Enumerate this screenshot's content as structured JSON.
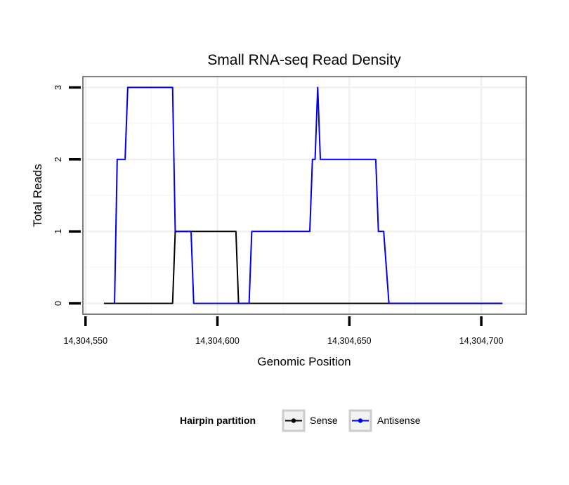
{
  "chart_data": {
    "type": "line",
    "title": "Small RNA-seq Read Density",
    "xlabel": "Genomic Position",
    "ylabel": "Total Reads",
    "xlim": [
      14304549,
      14304717
    ],
    "ylim": [
      -0.15,
      3.15
    ],
    "x_ticks": [
      14304550,
      14304600,
      14304650,
      14304700
    ],
    "x_tick_labels": [
      "14,304,550",
      "14,304,600",
      "14,304,650",
      "14,304,700"
    ],
    "y_ticks": [
      0,
      1,
      2,
      3
    ],
    "y_tick_labels": [
      "0",
      "1",
      "2",
      "3"
    ],
    "x_minor_gridlines": [
      14304575,
      14304625,
      14304675
    ],
    "y_minor_gridlines": [
      0.5,
      1.5,
      2.5
    ],
    "legend": {
      "title": "Hairpin partition",
      "position": "bottom",
      "entries": [
        "Sense",
        "Antisense"
      ]
    },
    "series": [
      {
        "name": "Sense",
        "color": "#000000",
        "points": [
          [
            14304557,
            0
          ],
          [
            14304583,
            0
          ],
          [
            14304584,
            1
          ],
          [
            14304607,
            1
          ],
          [
            14304608,
            0
          ],
          [
            14304708,
            0
          ]
        ]
      },
      {
        "name": "Antisense",
        "color": "#0000ee",
        "points": [
          [
            14304561,
            0
          ],
          [
            14304562,
            2
          ],
          [
            14304565,
            2
          ],
          [
            14304566,
            3
          ],
          [
            14304583,
            3
          ],
          [
            14304584,
            1
          ],
          [
            14304590,
            1
          ],
          [
            14304591,
            0
          ],
          [
            14304612,
            0
          ],
          [
            14304613,
            1
          ],
          [
            14304635,
            1
          ],
          [
            14304636,
            2
          ],
          [
            14304637,
            2
          ],
          [
            14304638,
            3
          ],
          [
            14304639,
            2
          ],
          [
            14304660,
            2
          ],
          [
            14304661,
            1
          ],
          [
            14304663,
            1
          ],
          [
            14304665,
            0
          ],
          [
            14304708,
            0
          ]
        ]
      }
    ]
  }
}
